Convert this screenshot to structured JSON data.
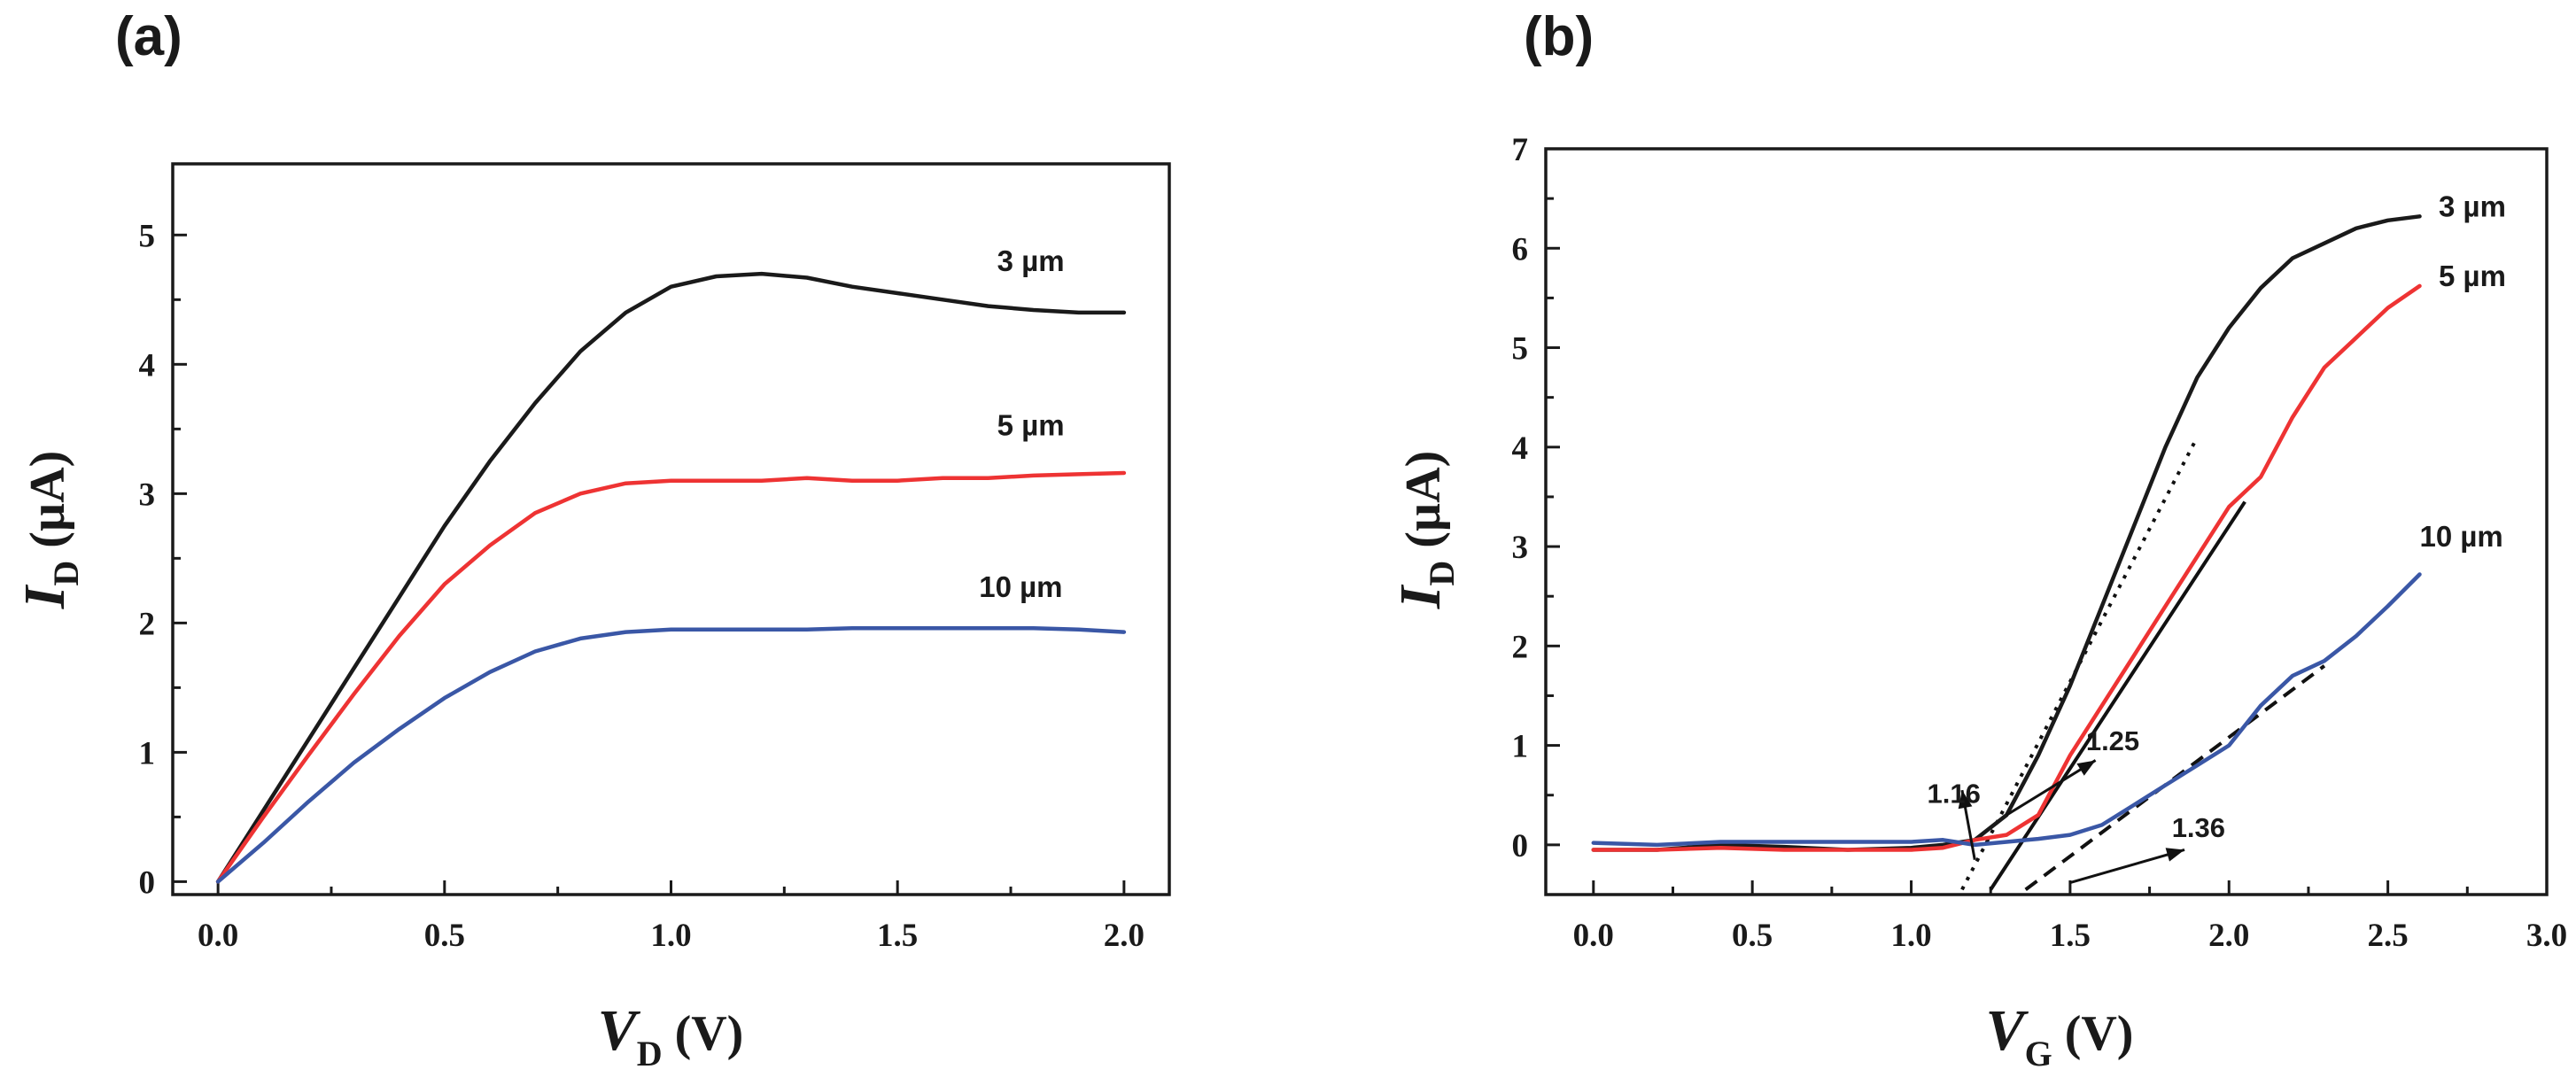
{
  "chart_data": [
    {
      "type": "line",
      "panel_label": "(a)",
      "x_variable": "V",
      "x_subscript": "D",
      "x_unit": "(V)",
      "y_variable": "I",
      "y_subscript": "D",
      "y_unit": "(µA)",
      "xlim": [
        -0.1,
        2.1
      ],
      "ylim": [
        -0.1,
        5.55
      ],
      "x_ticks": [
        0.0,
        0.5,
        1.0,
        1.5,
        2.0
      ],
      "x_tick_labels": [
        "0.0",
        "0.5",
        "1.0",
        "1.5",
        "2.0"
      ],
      "y_ticks": [
        0,
        1,
        2,
        3,
        4,
        5
      ],
      "y_tick_labels": [
        "0",
        "1",
        "2",
        "3",
        "4",
        "5"
      ],
      "series": [
        {
          "name": "3 µm",
          "color": "#1a1a1a",
          "label_text": "3 µm",
          "label_pos": [
            1.72,
            4.72
          ],
          "x": [
            0.0,
            0.1,
            0.2,
            0.3,
            0.4,
            0.5,
            0.6,
            0.7,
            0.8,
            0.9,
            1.0,
            1.1,
            1.2,
            1.3,
            1.4,
            1.5,
            1.6,
            1.7,
            1.8,
            1.9,
            2.0
          ],
          "y": [
            0.0,
            0.55,
            1.1,
            1.65,
            2.2,
            2.75,
            3.25,
            3.7,
            4.1,
            4.4,
            4.6,
            4.68,
            4.7,
            4.67,
            4.6,
            4.55,
            4.5,
            4.45,
            4.42,
            4.4,
            4.4
          ]
        },
        {
          "name": "5 µm",
          "color": "#ee3333",
          "label_text": "5 µm",
          "label_pos": [
            1.72,
            3.45
          ],
          "x": [
            0.0,
            0.1,
            0.2,
            0.3,
            0.4,
            0.5,
            0.6,
            0.7,
            0.8,
            0.9,
            1.0,
            1.1,
            1.2,
            1.3,
            1.4,
            1.5,
            1.6,
            1.7,
            1.8,
            1.9,
            2.0
          ],
          "y": [
            0.0,
            0.5,
            0.98,
            1.45,
            1.9,
            2.3,
            2.6,
            2.85,
            3.0,
            3.08,
            3.1,
            3.1,
            3.1,
            3.12,
            3.1,
            3.1,
            3.12,
            3.12,
            3.14,
            3.15,
            3.16
          ]
        },
        {
          "name": "10 µm",
          "color": "#3a57a6",
          "label_text": "10 µm",
          "label_pos": [
            1.68,
            2.2
          ],
          "x": [
            0.0,
            0.1,
            0.2,
            0.3,
            0.4,
            0.5,
            0.6,
            0.7,
            0.8,
            0.9,
            1.0,
            1.1,
            1.2,
            1.3,
            1.4,
            1.5,
            1.6,
            1.7,
            1.8,
            1.9,
            2.0
          ],
          "y": [
            0.0,
            0.3,
            0.62,
            0.92,
            1.18,
            1.42,
            1.62,
            1.78,
            1.88,
            1.93,
            1.95,
            1.95,
            1.95,
            1.95,
            1.96,
            1.96,
            1.96,
            1.96,
            1.96,
            1.95,
            1.93
          ]
        }
      ]
    },
    {
      "type": "line",
      "panel_label": "(b)",
      "x_variable": "V",
      "x_subscript": "G",
      "x_unit": "(V)",
      "y_variable": "I",
      "y_subscript": "D",
      "y_unit": "(µA)",
      "xlim": [
        -0.15,
        3.0
      ],
      "ylim": [
        -0.5,
        7.0
      ],
      "x_ticks": [
        0.0,
        0.5,
        1.0,
        1.5,
        2.0,
        2.5,
        3.0
      ],
      "x_tick_labels": [
        "0.0",
        "0.5",
        "1.0",
        "1.5",
        "2.0",
        "2.5",
        "3.0"
      ],
      "y_ticks": [
        0,
        1,
        2,
        3,
        4,
        5,
        6,
        7
      ],
      "y_tick_labels": [
        "0",
        "1",
        "2",
        "3",
        "4",
        "5",
        "6",
        "7"
      ],
      "series": [
        {
          "name": "3 µm",
          "color": "#1a1a1a",
          "label_text": "3 µm",
          "label_pos": [
            2.66,
            6.32
          ],
          "x": [
            0.0,
            0.2,
            0.4,
            0.6,
            0.8,
            1.0,
            1.1,
            1.2,
            1.3,
            1.4,
            1.5,
            1.6,
            1.7,
            1.8,
            1.9,
            2.0,
            2.1,
            2.2,
            2.3,
            2.4,
            2.5,
            2.6
          ],
          "y": [
            -0.05,
            -0.05,
            0.0,
            -0.02,
            -0.05,
            -0.03,
            0.0,
            0.05,
            0.3,
            0.9,
            1.6,
            2.4,
            3.2,
            4.0,
            4.7,
            5.2,
            5.6,
            5.9,
            6.05,
            6.2,
            6.28,
            6.32
          ]
        },
        {
          "name": "5 µm",
          "color": "#ee3333",
          "label_text": "5 µm",
          "label_pos": [
            2.66,
            5.62
          ],
          "x": [
            0.0,
            0.2,
            0.4,
            0.6,
            0.8,
            1.0,
            1.1,
            1.2,
            1.3,
            1.4,
            1.5,
            1.6,
            1.7,
            1.8,
            1.9,
            2.0,
            2.1,
            2.2,
            2.3,
            2.4,
            2.5,
            2.6
          ],
          "y": [
            -0.05,
            -0.05,
            -0.03,
            -0.05,
            -0.05,
            -0.05,
            -0.03,
            0.05,
            0.1,
            0.3,
            0.9,
            1.4,
            1.9,
            2.4,
            2.9,
            3.4,
            3.7,
            4.3,
            4.8,
            5.1,
            5.4,
            5.62
          ]
        },
        {
          "name": "10 µm",
          "color": "#3a57a6",
          "label_text": "10 µm",
          "label_pos": [
            2.6,
            3.0
          ],
          "x": [
            0.0,
            0.2,
            0.4,
            0.6,
            0.8,
            1.0,
            1.1,
            1.2,
            1.3,
            1.4,
            1.5,
            1.6,
            1.7,
            1.8,
            1.9,
            2.0,
            2.1,
            2.2,
            2.3,
            2.4,
            2.5,
            2.6
          ],
          "y": [
            0.02,
            0.0,
            0.03,
            0.03,
            0.03,
            0.03,
            0.05,
            0.0,
            0.03,
            0.06,
            0.1,
            0.2,
            0.4,
            0.6,
            0.8,
            1.0,
            1.4,
            1.7,
            1.85,
            2.1,
            2.4,
            2.72
          ]
        }
      ],
      "fits": [
        {
          "style": "dotted",
          "from": [
            1.16,
            -0.45
          ],
          "to": [
            1.9,
            4.1
          ]
        },
        {
          "style": "solid",
          "from": [
            1.25,
            -0.45
          ],
          "to": [
            2.05,
            3.45
          ]
        },
        {
          "style": "dashed",
          "from": [
            1.36,
            -0.45
          ],
          "to": [
            2.3,
            1.8
          ]
        }
      ],
      "annotations": [
        {
          "text": "1.16",
          "label_pos": [
            1.05,
            0.42
          ],
          "arrow_from": [
            1.2,
            -0.15
          ],
          "arrow_to": [
            1.16,
            0.55
          ]
        },
        {
          "text": "1.25",
          "label_pos": [
            1.55,
            0.95
          ],
          "arrow_from": [
            1.3,
            0.3
          ],
          "arrow_to": [
            1.58,
            0.85
          ]
        },
        {
          "text": "1.36",
          "label_pos": [
            1.82,
            0.08
          ],
          "arrow_from": [
            1.5,
            -0.38
          ],
          "arrow_to": [
            1.86,
            -0.05
          ]
        }
      ]
    }
  ]
}
